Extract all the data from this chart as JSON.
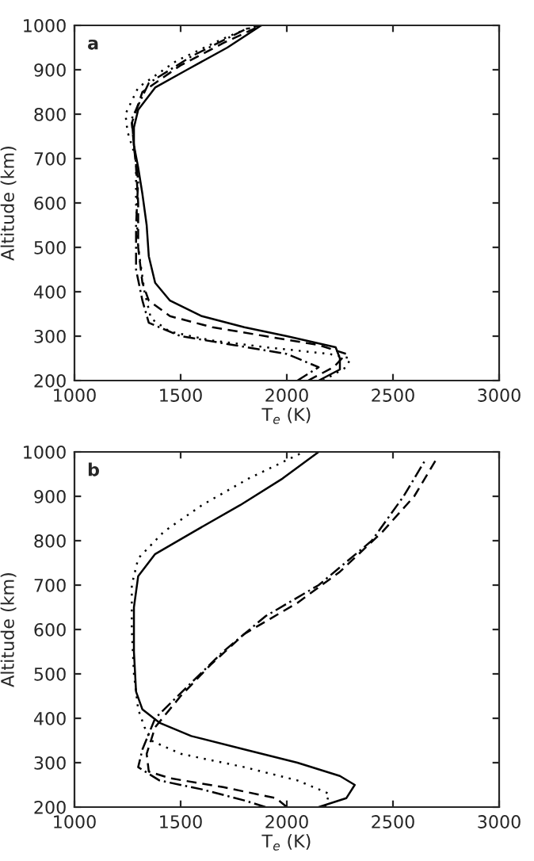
{
  "chart_data": [
    {
      "type": "line",
      "annotations": [
        "a"
      ],
      "xlabel": "T$_{e}$ (K)",
      "ylabel": "Altitude (km)",
      "xlim": [
        1000,
        3000
      ],
      "ylim": [
        200,
        1000
      ],
      "xticks": [
        1000,
        1500,
        2000,
        2500,
        3000
      ],
      "yticks": [
        200,
        300,
        400,
        500,
        600,
        700,
        800,
        900,
        1000
      ],
      "grid": false,
      "legend": false,
      "series": [
        {
          "color": "#000000",
          "line_style": "solid",
          "x": [
            2150,
            2250,
            2250,
            2230,
            2000,
            1800,
            1600,
            1450,
            1380,
            1350,
            1340,
            1320,
            1300,
            1280,
            1280,
            1300,
            1380,
            1530,
            1720,
            1880
          ],
          "values": [
            200,
            225,
            250,
            275,
            300,
            320,
            345,
            380,
            420,
            480,
            550,
            620,
            680,
            730,
            770,
            810,
            860,
            900,
            950,
            1000
          ]
        },
        {
          "color": "#000000",
          "line_style": "dashed",
          "x": [
            2100,
            2220,
            2280,
            2150,
            1900,
            1650,
            1450,
            1350,
            1320,
            1300,
            1300,
            1290,
            1280,
            1270,
            1320,
            1500,
            1700,
            1880
          ],
          "values": [
            200,
            230,
            260,
            280,
            300,
            320,
            345,
            380,
            420,
            500,
            600,
            680,
            730,
            780,
            850,
            910,
            960,
            1000
          ]
        },
        {
          "color": "#000000",
          "line_style": "dashdot",
          "x": [
            2050,
            2150,
            2000,
            1750,
            1500,
            1350,
            1320,
            1290,
            1290,
            1300,
            1280,
            1270,
            1350,
            1550,
            1800,
            1870
          ],
          "values": [
            200,
            230,
            260,
            280,
            300,
            330,
            380,
            450,
            550,
            650,
            730,
            790,
            870,
            930,
            990,
            1000
          ]
        },
        {
          "color": "#000000",
          "line_style": "dotted",
          "x": [
            2170,
            2280,
            2300,
            2200,
            1900,
            1650,
            1450,
            1360,
            1330,
            1300,
            1290,
            1290,
            1250,
            1240,
            1300,
            1480,
            1700,
            1850
          ],
          "values": [
            200,
            230,
            250,
            260,
            275,
            290,
            310,
            340,
            400,
            500,
            600,
            700,
            760,
            800,
            860,
            920,
            970,
            1000
          ]
        }
      ]
    },
    {
      "type": "line",
      "annotations": [
        "b"
      ],
      "xlabel": "T$_{e}$ (K)",
      "ylabel": "Altitude (km)",
      "xlim": [
        1000,
        3000
      ],
      "ylim": [
        200,
        1000
      ],
      "xticks": [
        1000,
        1500,
        2000,
        2500,
        3000
      ],
      "yticks": [
        200,
        300,
        400,
        500,
        600,
        700,
        800,
        900,
        1000
      ],
      "grid": false,
      "legend": false,
      "series": [
        {
          "color": "#000000",
          "line_style": "solid",
          "x": [
            2150,
            2280,
            2320,
            2250,
            2050,
            1800,
            1550,
            1400,
            1320,
            1290,
            1280,
            1280,
            1300,
            1380,
            1560,
            1780,
            1980,
            2150
          ],
          "values": [
            200,
            220,
            250,
            270,
            300,
            330,
            360,
            390,
            420,
            460,
            550,
            650,
            720,
            770,
            820,
            880,
            940,
            1000
          ]
        },
        {
          "color": "#000000",
          "line_style": "dotted",
          "x": [
            2180,
            2200,
            2050,
            1800,
            1500,
            1360,
            1330,
            1300,
            1280,
            1270,
            1270,
            1300,
            1420,
            1600,
            1820,
            2080
          ],
          "values": [
            200,
            230,
            260,
            290,
            320,
            350,
            380,
            420,
            500,
            600,
            700,
            760,
            820,
            880,
            940,
            1000
          ]
        },
        {
          "color": "#000000",
          "line_style": "dashed",
          "x": [
            2000,
            1950,
            1700,
            1450,
            1350,
            1340,
            1380,
            1500,
            1640,
            1800,
            2050,
            2250,
            2450,
            2600,
            2700
          ],
          "values": [
            200,
            220,
            245,
            265,
            280,
            320,
            380,
            450,
            520,
            590,
            660,
            730,
            820,
            900,
            980
          ]
        },
        {
          "color": "#000000",
          "line_style": "dashdot",
          "x": [
            1900,
            1800,
            1600,
            1400,
            1300,
            1320,
            1380,
            1550,
            1700,
            1900,
            2150,
            2400,
            2550,
            2650
          ],
          "values": [
            200,
            215,
            240,
            260,
            290,
            330,
            400,
            480,
            550,
            630,
            700,
            800,
            900,
            980
          ]
        }
      ]
    }
  ]
}
